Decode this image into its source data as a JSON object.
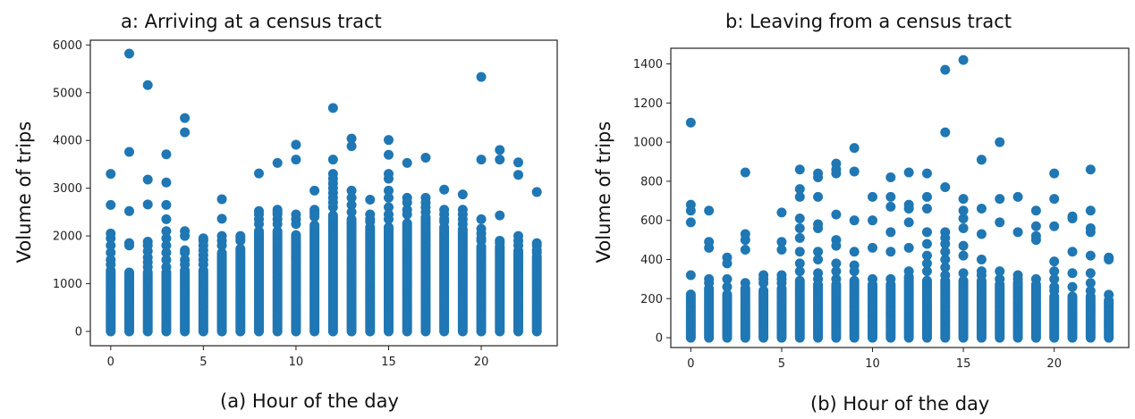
{
  "chart_data": [
    {
      "type": "scatter",
      "title": "a: Arriving at a census tract",
      "xlabel": "(a)  Hour of the day",
      "ylabel": "Volume of trips",
      "xlim": [
        -1.1,
        24.1
      ],
      "ylim": [
        -300,
        6100
      ],
      "xticks": [
        0,
        5,
        10,
        15,
        20
      ],
      "yticks": [
        0,
        1000,
        2000,
        3000,
        4000,
        5000,
        6000
      ],
      "marker_color": "#1f77b4",
      "grid": false,
      "columns": [
        {
          "x": 0,
          "dense_top": 1300,
          "points": [
            3300,
            2650,
            2050,
            1950,
            1800,
            1650,
            1500,
            1400
          ]
        },
        {
          "x": 1,
          "dense_top": 1250,
          "points": [
            5820,
            3760,
            2520,
            1850,
            1800
          ]
        },
        {
          "x": 2,
          "dense_top": 1250,
          "points": [
            5160,
            3180,
            2660,
            1880,
            1800,
            1680,
            1550,
            1450,
            1350
          ]
        },
        {
          "x": 3,
          "dense_top": 1250,
          "points": [
            3710,
            3120,
            2650,
            2350,
            2100,
            1950,
            1800,
            1650,
            1500,
            1350
          ]
        },
        {
          "x": 4,
          "dense_top": 1300,
          "points": [
            4470,
            4170,
            2100,
            2000,
            1700,
            1650,
            1500,
            1400
          ]
        },
        {
          "x": 5,
          "dense_top": 1300,
          "points": [
            1950,
            1900,
            1800,
            1700,
            1600,
            1500,
            1400
          ]
        },
        {
          "x": 6,
          "dense_top": 1650,
          "points": [
            2770,
            2360,
            2000,
            1900,
            1800
          ]
        },
        {
          "x": 7,
          "dense_top": 1750,
          "points": [
            2000,
            1950,
            1900
          ]
        },
        {
          "x": 8,
          "dense_top": 2100,
          "points": [
            3310,
            2520,
            2450,
            2350,
            2250
          ]
        },
        {
          "x": 9,
          "dense_top": 2100,
          "points": [
            3530,
            2550,
            2500,
            2450,
            2350,
            2250
          ]
        },
        {
          "x": 10,
          "dense_top": 2050,
          "points": [
            3910,
            3600,
            2450,
            2350,
            2250
          ]
        },
        {
          "x": 11,
          "dense_top": 2250,
          "points": [
            2950,
            2550,
            2500,
            2450,
            2400
          ]
        },
        {
          "x": 12,
          "dense_top": 2450,
          "points": [
            4680,
            3600,
            3300,
            3200,
            3100,
            3000,
            2900,
            2800,
            2700,
            2600
          ]
        },
        {
          "x": 13,
          "dense_top": 2350,
          "points": [
            4040,
            3880,
            2950,
            2800,
            2650,
            2500
          ]
        },
        {
          "x": 14,
          "dense_top": 2200,
          "points": [
            2760,
            2450,
            2350,
            2300
          ]
        },
        {
          "x": 15,
          "dense_top": 2200,
          "points": [
            4010,
            3700,
            3300,
            3200,
            2950,
            2800,
            2600,
            2450,
            2350
          ]
        },
        {
          "x": 16,
          "dense_top": 2300,
          "points": [
            3530,
            2800,
            2700,
            2550,
            2450
          ]
        },
        {
          "x": 17,
          "dense_top": 2400,
          "points": [
            3640,
            2800,
            2700,
            2600,
            2500
          ]
        },
        {
          "x": 18,
          "dense_top": 2200,
          "points": [
            2970,
            2550,
            2450,
            2350,
            2300
          ]
        },
        {
          "x": 19,
          "dense_top": 2150,
          "points": [
            2870,
            2550,
            2450,
            2350,
            2250
          ]
        },
        {
          "x": 20,
          "dense_top": 1800,
          "points": [
            5330,
            3600,
            2350,
            2150,
            2050,
            1950,
            1900
          ]
        },
        {
          "x": 21,
          "dense_top": 1800,
          "points": [
            3800,
            3600,
            2430,
            1900,
            1850
          ]
        },
        {
          "x": 22,
          "dense_top": 1700,
          "points": [
            3540,
            3280,
            2000,
            1900,
            1800
          ]
        },
        {
          "x": 23,
          "dense_top": 1600,
          "points": [
            2920,
            1850,
            1800,
            1700,
            1650
          ]
        }
      ]
    },
    {
      "type": "scatter",
      "title": "b: Leaving from a census tract",
      "xlabel": "(b) Hour of the day",
      "ylabel": "Volume of trips",
      "xlim": [
        -1.1,
        24.1
      ],
      "ylim": [
        -50,
        1480
      ],
      "xticks": [
        0,
        5,
        10,
        15,
        20
      ],
      "yticks": [
        0,
        200,
        400,
        600,
        800,
        1000,
        1200,
        1400
      ],
      "marker_color": "#1f77b4",
      "grid": false,
      "columns": [
        {
          "x": 0,
          "dense_top": 230,
          "points": [
            1100,
            680,
            650,
            590,
            320
          ]
        },
        {
          "x": 1,
          "dense_top": 260,
          "points": [
            650,
            490,
            460,
            300,
            280
          ]
        },
        {
          "x": 2,
          "dense_top": 230,
          "points": [
            410,
            380,
            300,
            260
          ]
        },
        {
          "x": 3,
          "dense_top": 260,
          "points": [
            845,
            530,
            500,
            450,
            280
          ]
        },
        {
          "x": 4,
          "dense_top": 250,
          "points": [
            320,
            300,
            280
          ]
        },
        {
          "x": 5,
          "dense_top": 260,
          "points": [
            640,
            490,
            450,
            320,
            300,
            280
          ]
        },
        {
          "x": 6,
          "dense_top": 300,
          "points": [
            860,
            760,
            720,
            610,
            560,
            510,
            440,
            380,
            340
          ]
        },
        {
          "x": 7,
          "dense_top": 280,
          "points": [
            840,
            820,
            720,
            580,
            560,
            440,
            400,
            330,
            300
          ]
        },
        {
          "x": 8,
          "dense_top": 280,
          "points": [
            890,
            860,
            840,
            630,
            500,
            470,
            380,
            340,
            300
          ]
        },
        {
          "x": 9,
          "dense_top": 300,
          "points": [
            970,
            850,
            600,
            440,
            370,
            340
          ]
        },
        {
          "x": 10,
          "dense_top": 280,
          "points": [
            720,
            600,
            460,
            300
          ]
        },
        {
          "x": 11,
          "dense_top": 280,
          "points": [
            820,
            720,
            670,
            540,
            440,
            300
          ]
        },
        {
          "x": 12,
          "dense_top": 320,
          "points": [
            845,
            680,
            660,
            590,
            460,
            340
          ]
        },
        {
          "x": 13,
          "dense_top": 300,
          "points": [
            840,
            720,
            660,
            540,
            480,
            420,
            380,
            340
          ]
        },
        {
          "x": 14,
          "dense_top": 300,
          "points": [
            1370,
            1050,
            770,
            540,
            510,
            480,
            440,
            400,
            360,
            320
          ]
        },
        {
          "x": 15,
          "dense_top": 300,
          "points": [
            1420,
            710,
            650,
            610,
            560,
            470,
            420,
            330
          ]
        },
        {
          "x": 16,
          "dense_top": 300,
          "points": [
            910,
            660,
            530,
            400,
            340,
            320
          ]
        },
        {
          "x": 17,
          "dense_top": 280,
          "points": [
            1000,
            710,
            590,
            340,
            300
          ]
        },
        {
          "x": 18,
          "dense_top": 290,
          "points": [
            720,
            540,
            320,
            300
          ]
        },
        {
          "x": 19,
          "dense_top": 280,
          "points": [
            650,
            570,
            520,
            500,
            300
          ]
        },
        {
          "x": 20,
          "dense_top": 220,
          "points": [
            840,
            710,
            570,
            390,
            340,
            300,
            260,
            240
          ]
        },
        {
          "x": 21,
          "dense_top": 220,
          "points": [
            620,
            610,
            440,
            330,
            260
          ]
        },
        {
          "x": 22,
          "dense_top": 220,
          "points": [
            860,
            650,
            560,
            540,
            420,
            330,
            280,
            240
          ]
        },
        {
          "x": 23,
          "dense_top": 200,
          "points": [
            410,
            400,
            220
          ]
        }
      ]
    }
  ]
}
